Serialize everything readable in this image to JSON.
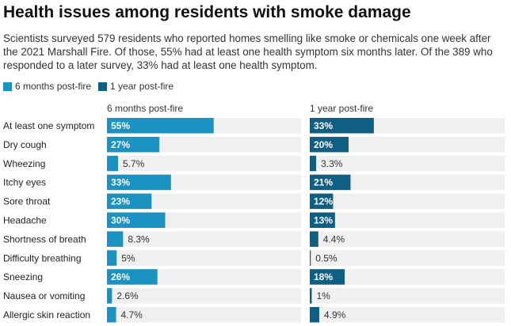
{
  "title": "Health issues among residents with smoke damage",
  "subtitle": "Scientists surveyed 579 residents who reported homes smelling like smoke or chemicals one week after the 2021 Marshall Fire. Of those, 55% had at least one health symptom six months later. Of the 389 who responded to a later survey, 33% had at least one health symptom.",
  "legend": [
    {
      "label": "6 months post-fire",
      "color": "#1a93c2"
    },
    {
      "label": "1 year post-fire",
      "color": "#0f5f85"
    }
  ],
  "colors": {
    "bg_track": "#f0f0f0",
    "label_inside": "#ffffff",
    "label_outside": "#333333"
  },
  "chart_data": {
    "type": "bar",
    "orientation": "horizontal",
    "value_format": "percent",
    "scale_max": 100,
    "categories": [
      "At least one symptom",
      "Dry cough",
      "Wheezing",
      "Itchy eyes",
      "Sore throat",
      "Headache",
      "Shortness of breath",
      "Difficulty breathing",
      "Sneezing",
      "Nausea or vomiting",
      "Allergic skin reaction"
    ],
    "series": [
      {
        "name": "6 months post-fire",
        "color": "#1a93c2",
        "values": [
          55,
          27,
          5.7,
          33,
          23,
          30,
          8.3,
          5,
          26,
          2.6,
          4.7
        ]
      },
      {
        "name": "1 year post-fire",
        "color": "#0f5f85",
        "values": [
          33,
          20,
          3.3,
          21,
          12,
          13,
          4.4,
          0.5,
          18,
          1,
          4.9
        ]
      }
    ]
  }
}
